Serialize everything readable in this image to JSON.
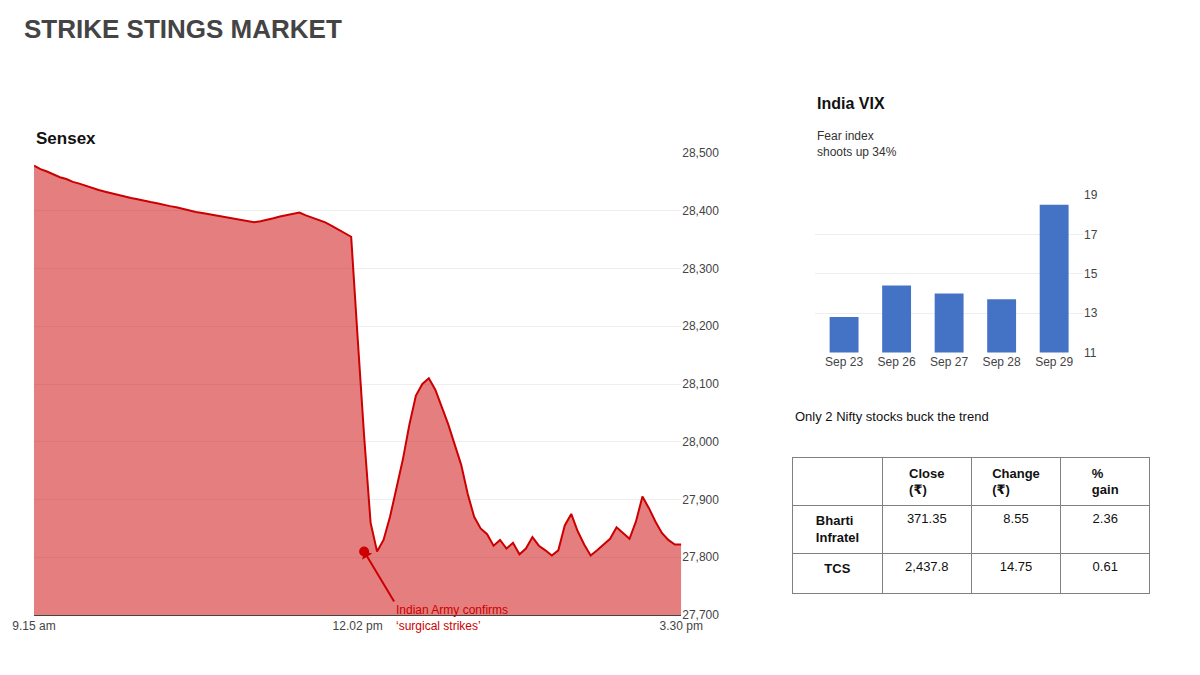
{
  "chart_data": [
    {
      "type": "area",
      "title": "STRIKE STINGS MARKET",
      "x": [
        0,
        1,
        2,
        3,
        4,
        5,
        6,
        7,
        8,
        9,
        10,
        11,
        12,
        13,
        14,
        15,
        16,
        17,
        18,
        19,
        20,
        21,
        22,
        23,
        24,
        25,
        26,
        27,
        28,
        29,
        30,
        31,
        32,
        33,
        34,
        35,
        36,
        37,
        38,
        39,
        40,
        41,
        42,
        43,
        44,
        45,
        46,
        47,
        48,
        49,
        50,
        51,
        52,
        53,
        54,
        55,
        56,
        57,
        58,
        59,
        60,
        61,
        62,
        63,
        64,
        65,
        66,
        67,
        68,
        69,
        70,
        71,
        72,
        73,
        74,
        75,
        76,
        77,
        78,
        79,
        80,
        81,
        82,
        83,
        84,
        85,
        86,
        87,
        88,
        89,
        90,
        91,
        92,
        93,
        94,
        95,
        96,
        97,
        98,
        99,
        100
      ],
      "series": [
        {
          "name": "Sensex",
          "color": "#cc0000",
          "values": [
            28478,
            28472,
            28468,
            28463,
            28458,
            28455,
            28450,
            28447,
            28443,
            28440,
            28436,
            28433,
            28430,
            28427,
            28425,
            28422,
            28420,
            28417,
            28415,
            28413,
            28410,
            28408,
            28406,
            28403,
            28400,
            28398,
            28396,
            28394,
            28392,
            28390,
            28388,
            28386,
            28384,
            28382,
            28380,
            28382,
            28384,
            28387,
            28390,
            28392,
            28394,
            28397,
            28392,
            28388,
            28384,
            28380,
            28374,
            28368,
            28362,
            28355,
            28180,
            28010,
            27860,
            27810,
            27830,
            27870,
            27920,
            27970,
            28030,
            28080,
            28100,
            28110,
            28090,
            28060,
            28030,
            27995,
            27960,
            27910,
            27870,
            27850,
            27840,
            27820,
            27830,
            27815,
            27825,
            27805,
            27815,
            27835,
            27820,
            27812,
            27803,
            27812,
            27855,
            27875,
            27845,
            27822,
            27803,
            27812,
            27822,
            27832,
            27852,
            27842,
            27832,
            27862,
            27905,
            27885,
            27862,
            27842,
            27830,
            27822,
            27822
          ]
        }
      ],
      "xlim": [
        0,
        100
      ],
      "xticks": [
        {
          "value": 0,
          "label": "9.15 am"
        },
        {
          "value": 50,
          "label": "12.02 pm"
        },
        {
          "value": 100,
          "label": "3.30 pm"
        }
      ],
      "ylim": [
        27700,
        28500
      ],
      "yticks": [
        {
          "value": 27700,
          "label": "27,700"
        },
        {
          "value": 27800,
          "label": "27,800"
        },
        {
          "value": 27900,
          "label": "27,900"
        },
        {
          "value": 28000,
          "label": "28,000"
        },
        {
          "value": 28100,
          "label": "28,100"
        },
        {
          "value": 28200,
          "label": "28,200"
        },
        {
          "value": 28300,
          "label": "28,300"
        },
        {
          "value": 28400,
          "label": "28,400"
        },
        {
          "value": 28500,
          "label": "28,500"
        }
      ],
      "grid": true,
      "annotations": [
        {
          "x": 51,
          "y": 27810,
          "text": "Indian Army confirms\n‘surgical strikes’",
          "color": "#cc0000"
        }
      ]
    },
    {
      "type": "bar",
      "title": "India VIX",
      "subtitle": "Fear index\nshoots up 34%",
      "categories": [
        "Sep 23",
        "Sep 26",
        "Sep 27",
        "Sep 28",
        "Sep 29"
      ],
      "values": [
        12.8,
        14.4,
        14.0,
        13.7,
        18.5
      ],
      "color": "#4472c4",
      "ylim": [
        11,
        19
      ],
      "yticks": [
        11,
        13,
        15,
        17,
        19
      ],
      "grid": true
    },
    {
      "type": "table",
      "title": "Only 2 Nifty stocks buck the trend",
      "columns": [
        null,
        "Close\n(₹)",
        "Change\n(₹)",
        "%\ngain"
      ],
      "rows": [
        [
          "Bharti\nInfratel",
          "371.35",
          "8.55",
          "2.36"
        ],
        [
          "TCS",
          "2,437.8",
          "14.75",
          "0.61"
        ]
      ]
    }
  ]
}
